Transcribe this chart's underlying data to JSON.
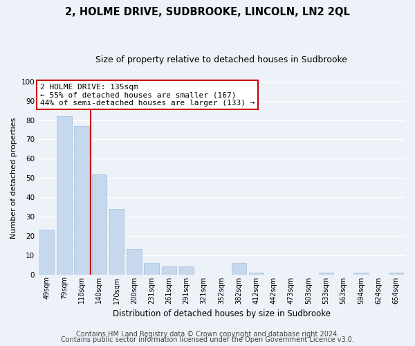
{
  "title": "2, HOLME DRIVE, SUDBROOKE, LINCOLN, LN2 2QL",
  "subtitle": "Size of property relative to detached houses in Sudbrooke",
  "xlabel": "Distribution of detached houses by size in Sudbrooke",
  "ylabel": "Number of detached properties",
  "bar_labels": [
    "49sqm",
    "79sqm",
    "110sqm",
    "140sqm",
    "170sqm",
    "200sqm",
    "231sqm",
    "261sqm",
    "291sqm",
    "321sqm",
    "352sqm",
    "382sqm",
    "412sqm",
    "442sqm",
    "473sqm",
    "503sqm",
    "533sqm",
    "563sqm",
    "594sqm",
    "624sqm",
    "654sqm"
  ],
  "bar_values": [
    23,
    82,
    77,
    52,
    34,
    13,
    6,
    4,
    4,
    0,
    0,
    6,
    1,
    0,
    0,
    0,
    1,
    0,
    1,
    0,
    1
  ],
  "bar_color": "#c5d8ed",
  "bar_edge_color": "#a8c4de",
  "vline_x": 2.5,
  "vline_color": "#cc0000",
  "annotation_text": "2 HOLME DRIVE: 135sqm\n← 55% of detached houses are smaller (167)\n44% of semi-detached houses are larger (133) →",
  "annotation_box_color": "#ffffff",
  "annotation_box_edge": "#cc0000",
  "ylim": [
    0,
    100
  ],
  "yticks": [
    0,
    10,
    20,
    30,
    40,
    50,
    60,
    70,
    80,
    90,
    100
  ],
  "background_color": "#edf1f8",
  "grid_color": "#ffffff",
  "footer_line1": "Contains HM Land Registry data © Crown copyright and database right 2024.",
  "footer_line2": "Contains public sector information licensed under the Open Government Licence v3.0.",
  "title_fontsize": 10.5,
  "subtitle_fontsize": 9,
  "annotation_fontsize": 8,
  "footer_fontsize": 7
}
